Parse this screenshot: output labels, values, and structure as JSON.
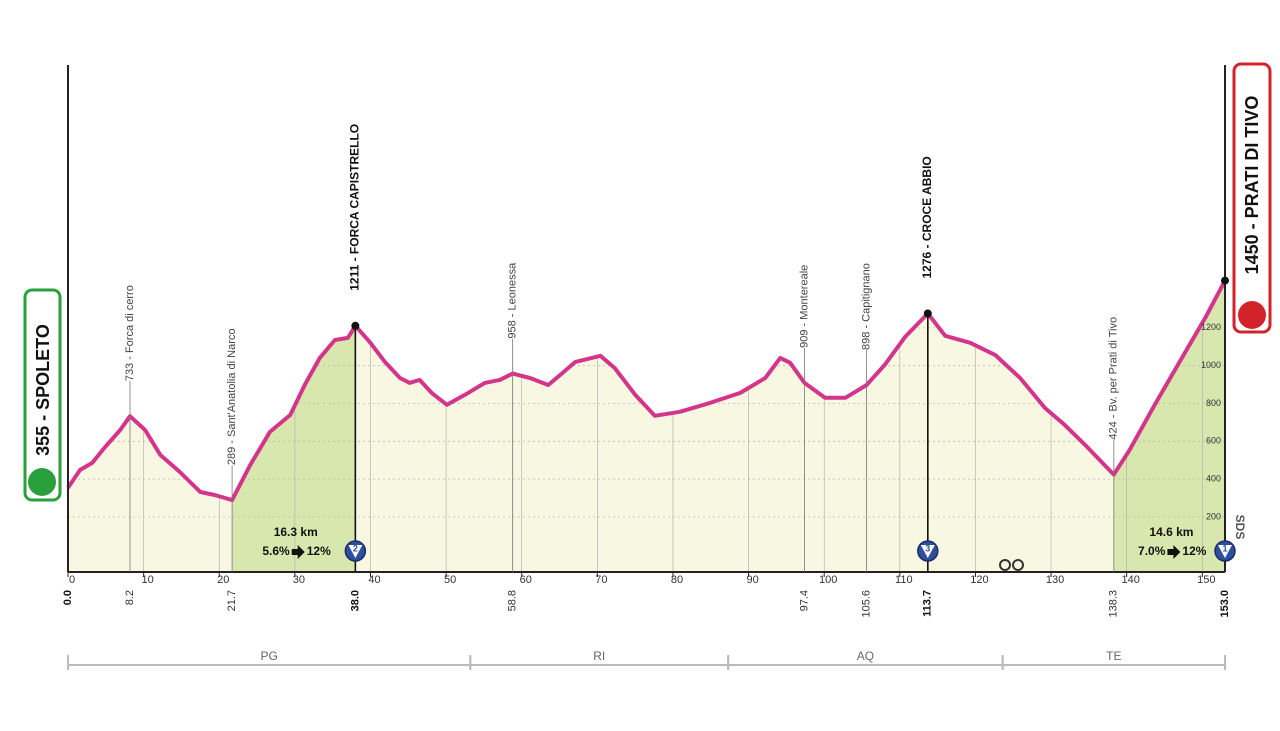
{
  "chart_data": {
    "type": "line",
    "xlim": [
      0,
      153
    ],
    "ylim": [
      -91,
      2590
    ],
    "xticks": [
      0,
      10,
      20,
      30,
      40,
      50,
      60,
      70,
      80,
      90,
      100,
      110,
      120,
      130,
      140,
      150
    ],
    "yticks": [
      200,
      400,
      600,
      800,
      1000,
      1200
    ],
    "grid": true,
    "color": "#d4358c",
    "x": [
      0,
      1.6,
      3.2,
      4.9,
      6.9,
      8.2,
      10.2,
      12.2,
      14.8,
      17.5,
      19.4,
      21.7,
      24.1,
      26.7,
      29.4,
      31.3,
      33.3,
      35.3,
      37.0,
      38.0,
      39.9,
      41.9,
      43.9,
      45.2,
      46.5,
      48.1,
      50.1,
      52.5,
      55.1,
      57.1,
      58.8,
      61.1,
      63.5,
      65.1,
      67.1,
      70.4,
      72.3,
      75.0,
      77.6,
      80.9,
      84.9,
      88.9,
      92.2,
      94.2,
      95.5,
      97.4,
      100.1,
      102.8,
      105.6,
      108.0,
      110.7,
      113.7,
      116.0,
      119.3,
      122.6,
      125.9,
      129.2,
      131.8,
      134.5,
      138.3,
      140.4,
      143.7,
      147.0,
      150.4,
      153.0
    ],
    "values": [
      355,
      449,
      486,
      570,
      660,
      733,
      660,
      528,
      438,
      332,
      316,
      289,
      475,
      650,
      740,
      898,
      1041,
      1136,
      1147,
      1211,
      1126,
      1020,
      935,
      909,
      925,
      856,
      793,
      846,
      909,
      925,
      958,
      935,
      898,
      951,
      1020,
      1052,
      988,
      846,
      735,
      756,
      803,
      856,
      935,
      1041,
      1015,
      909,
      830,
      830,
      898,
      1004,
      1152,
      1276,
      1158,
      1121,
      1057,
      935,
      776,
      687,
      581,
      424,
      555,
      793,
      1020,
      1253,
      1450
    ],
    "start": {
      "name": "355 - SPOLETO",
      "km": {
        "value": 0,
        "label": "0.0"
      }
    },
    "finish": {
      "name": "1450 - PRATI DI TIVO",
      "km": {
        "value": 153,
        "label": "153.0"
      }
    },
    "points": [
      {
        "label": "733 - Forca di cerro",
        "km": 8.2
      },
      {
        "label": "289 - Sant'Anatolia di Narco",
        "km": 21.7
      },
      {
        "label": "1211 - FORCA CAPISTRELLO",
        "km": {
          "value": 38,
          "label": "38.0"
        },
        "summit": true
      },
      {
        "label": "958 - Leonessa",
        "km": 58.8
      },
      {
        "label": "909 - Montereale",
        "km": 97.4
      },
      {
        "label": "898 - Capitignano",
        "km": 105.6
      },
      {
        "label": "1276 - CROCE ABBIO",
        "km": 113.7,
        "summit": true
      },
      {
        "label": "424 - Bv. per Prati di Tivo",
        "km": 138.3
      }
    ],
    "climbs": [
      {
        "category": "2",
        "from": 21.7,
        "to": 38,
        "length": "16.3 km",
        "average": "5.6%",
        "max": "12%"
      },
      {
        "category": "3",
        "to": 113.7
      },
      {
        "category": "1",
        "from": 138.3,
        "to": 153,
        "length": "14.6 km",
        "average": "7.0%",
        "max": "12%"
      }
    ],
    "regions": [
      {
        "name": "PG",
        "from": 0,
        "to": 53.2
      },
      {
        "name": "RI",
        "from": 53.2,
        "to": 87.3
      },
      {
        "name": "AQ",
        "from": 87.3,
        "to": 123.6
      },
      {
        "name": "TE",
        "from": 123.6,
        "to": 153
      }
    ],
    "logo": "SDS"
  }
}
